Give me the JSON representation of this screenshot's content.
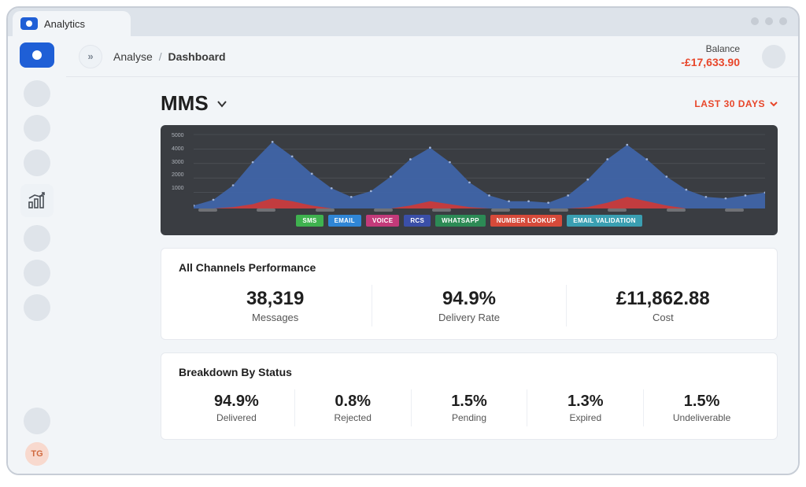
{
  "tab": {
    "title": "Analytics"
  },
  "sidebar": {
    "avatar_initials": "TG"
  },
  "topbar": {
    "breadcrumb_parent": "Analyse",
    "breadcrumb_current": "Dashboard",
    "balance_label": "Balance",
    "balance_value": "-£17,633.90"
  },
  "page": {
    "title": "MMS",
    "date_range_label": "LAST 30 DAYS"
  },
  "chart": {
    "background_color": "#3a3d42",
    "y_axis_labels": [
      "5000",
      "4000",
      "3000",
      "2000",
      "1000"
    ],
    "grid_color": "#55595f",
    "series": {
      "blue_area": {
        "color": "#3f64a8",
        "values": [
          200,
          600,
          1600,
          3200,
          4600,
          3600,
          2400,
          1400,
          800,
          1200,
          2200,
          3400,
          4200,
          3200,
          1800,
          900,
          500,
          500,
          400,
          900,
          2000,
          3400,
          4400,
          3400,
          2200,
          1300,
          800,
          700,
          900,
          1100
        ]
      },
      "red_area": {
        "color": "#c93a3a",
        "values": [
          0,
          0,
          100,
          300,
          700,
          500,
          200,
          0,
          0,
          0,
          0,
          200,
          500,
          300,
          100,
          0,
          0,
          0,
          0,
          0,
          100,
          400,
          800,
          500,
          200,
          0,
          0,
          0,
          0,
          0
        ]
      }
    },
    "y_max": 5000,
    "legend": [
      {
        "label": "SMS",
        "color": "#3fb24f"
      },
      {
        "label": "EMAIL",
        "color": "#2f86d6"
      },
      {
        "label": "VOICE",
        "color": "#c33a7a"
      },
      {
        "label": "RCS",
        "color": "#3a4fa8"
      },
      {
        "label": "WHATSAPP",
        "color": "#2c8a55"
      },
      {
        "label": "NUMBER LOOKUP",
        "color": "#d64a3a"
      },
      {
        "label": "EMAIL VALIDATION",
        "color": "#3a9fb2"
      }
    ]
  },
  "performance": {
    "title": "All Channels Performance",
    "metrics": [
      {
        "value": "38,319",
        "label": "Messages"
      },
      {
        "value": "94.9%",
        "label": "Delivery Rate"
      },
      {
        "value": "£11,862.88",
        "label": "Cost"
      }
    ]
  },
  "breakdown": {
    "title": "Breakdown By Status",
    "statuses": [
      {
        "value": "94.9%",
        "label": "Delivered"
      },
      {
        "value": "0.8%",
        "label": "Rejected"
      },
      {
        "value": "1.5%",
        "label": "Pending"
      },
      {
        "value": "1.3%",
        "label": "Expired"
      },
      {
        "value": "1.5%",
        "label": "Undeliverable"
      }
    ]
  }
}
